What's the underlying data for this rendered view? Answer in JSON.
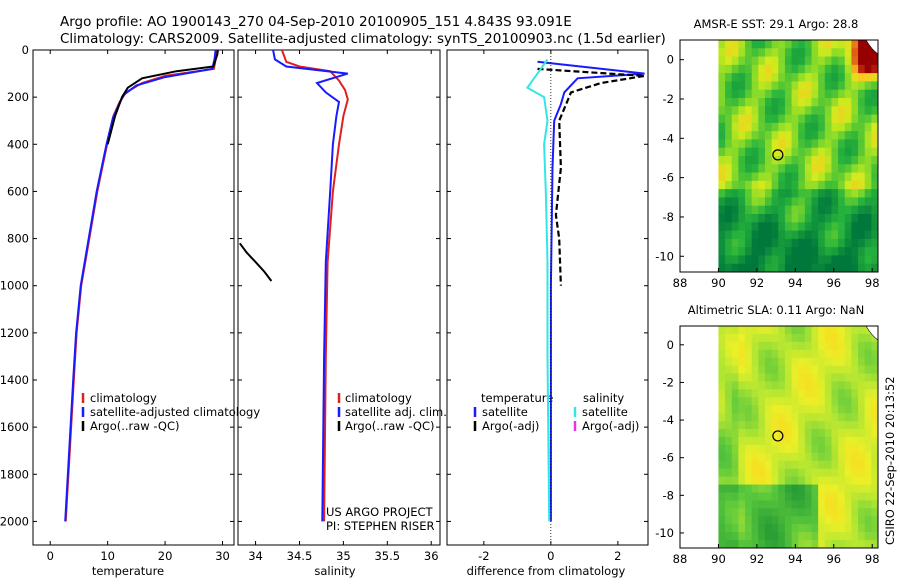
{
  "header": {
    "line1": "Argo profile: AO 1900143_270 04-Sep-2010 20100905_151 4.843S 93.091E",
    "line2": "Climatology: CARS2009. Satellite-adjusted climatology: synTS_20100903.nc (1.5d earlier)"
  },
  "side_label": "CSIRO 22-Sep-2010 20:13:52",
  "colors": {
    "climatology": "#e02020",
    "satellite": "#1a1aff",
    "argo": "#000000",
    "salinity_sat": "#33e6e6",
    "salinity_argo": "#e633e6"
  },
  "chart_data": [
    {
      "type": "line",
      "id": "temperature",
      "xlabel": "temperature",
      "ylabel": "",
      "xlim": [
        -3,
        32
      ],
      "ylim": [
        2100,
        0
      ],
      "xticks": [
        0,
        10,
        20,
        30
      ],
      "yticks": [
        0,
        200,
        400,
        600,
        800,
        1000,
        1200,
        1400,
        1600,
        1800,
        2000
      ],
      "series": [
        {
          "name": "climatology",
          "color": "#e02020",
          "x": [
            28.9,
            28.8,
            28.5,
            20,
            16,
            13.2,
            12.1,
            11,
            9.9,
            8.2,
            6.8,
            5.4,
            4.6,
            4.1,
            3.4,
            2.7
          ],
          "y": [
            0,
            40,
            80,
            110,
            140,
            180,
            220,
            280,
            400,
            600,
            800,
            1000,
            1200,
            1400,
            1700,
            2000
          ]
        },
        {
          "name": "satellite-adjusted climatology",
          "color": "#1a1aff",
          "x": [
            28.8,
            28.6,
            28.2,
            20,
            15,
            12.8,
            12,
            10.9,
            9.8,
            8.1,
            6.7,
            5.3,
            4.5,
            4,
            3.3,
            2.6
          ],
          "y": [
            0,
            40,
            80,
            115,
            150,
            190,
            230,
            290,
            400,
            600,
            800,
            1000,
            1200,
            1400,
            1700,
            2000
          ]
        },
        {
          "name": "Argo(..raw -QC)",
          "color": "#000000",
          "x": [
            29.2,
            29.1,
            28.4,
            22,
            16,
            13.5,
            12.5,
            11.3,
            10
          ],
          "y": [
            0,
            20,
            70,
            90,
            120,
            160,
            200,
            280,
            400
          ]
        }
      ],
      "legend": [
        "climatology",
        "satellite-adjusted climatology",
        "Argo(..raw -QC)"
      ],
      "legend_position": "lower-right"
    },
    {
      "type": "line",
      "id": "salinity",
      "xlabel": "salinity",
      "ylabel": "",
      "xlim": [
        33.8,
        36.1
      ],
      "ylim": [
        2100,
        0
      ],
      "xticks": [
        34,
        34.5,
        35,
        35.5,
        36
      ],
      "yticks": [
        0,
        200,
        400,
        600,
        800,
        1000,
        1200,
        1400,
        1600,
        1800,
        2000
      ],
      "series": [
        {
          "name": "climatology",
          "color": "#e02020",
          "x": [
            34.3,
            34.35,
            34.5,
            34.85,
            34.95,
            35.02,
            35.05,
            35.0,
            34.95,
            34.88,
            34.82,
            34.8,
            34.78
          ],
          "y": [
            0,
            50,
            70,
            90,
            130,
            170,
            210,
            280,
            400,
            600,
            900,
            1300,
            2000
          ]
        },
        {
          "name": "satellite adj. clim.",
          "color": "#1a1aff",
          "x": [
            34.2,
            34.22,
            34.35,
            35.05,
            34.7,
            34.8,
            34.95,
            34.92,
            34.88,
            34.85,
            34.8,
            34.78,
            34.76
          ],
          "y": [
            0,
            40,
            70,
            100,
            140,
            180,
            220,
            280,
            400,
            600,
            900,
            1300,
            2000
          ]
        },
        {
          "name": "Argo(..raw -QC)",
          "color": "#000000",
          "x": [
            33.82,
            33.9,
            34.0,
            34.1,
            34.18
          ],
          "y": [
            820,
            860,
            900,
            940,
            980
          ]
        }
      ],
      "legend": [
        "climatology",
        "satellite adj. clim.",
        "Argo(..raw -QC)"
      ],
      "legend_position": "lower-right",
      "annotations": [
        "US ARGO PROJECT",
        "PI: STEPHEN RISER"
      ]
    },
    {
      "type": "line",
      "id": "difference",
      "xlabel": "difference from climatology",
      "ylabel": "",
      "xlim": [
        -3.1,
        2.9
      ],
      "ylim": [
        2100,
        0
      ],
      "xticks": [
        -2,
        0,
        2
      ],
      "yticks": [
        0,
        200,
        400,
        600,
        800,
        1000,
        1200,
        1400,
        1600,
        1800,
        2000
      ],
      "series": [
        {
          "name": "temperature satellite",
          "color": "#1a1aff",
          "x": [
            -0.4,
            2.8,
            0.8,
            0.4,
            0.3,
            0.1,
            0.05,
            0.0,
            0.0
          ],
          "y": [
            50,
            100,
            120,
            180,
            230,
            300,
            500,
            1000,
            2000
          ]
        },
        {
          "name": "temperature Argo(-adj)",
          "color": "#000000",
          "x": [
            -0.4,
            2.8,
            1.5,
            0.6,
            0.25,
            0.3,
            0.15,
            0.25,
            0.3
          ],
          "y": [
            80,
            110,
            140,
            180,
            300,
            500,
            700,
            800,
            1000
          ]
        },
        {
          "name": "salinity satellite",
          "color": "#33e6e6",
          "x": [
            -0.1,
            -0.7,
            -0.2,
            -0.1,
            -0.2,
            -0.15,
            -0.1,
            -0.1,
            -0.05
          ],
          "y": [
            40,
            160,
            200,
            300,
            400,
            600,
            900,
            1300,
            2000
          ]
        },
        {
          "name": "salinity Argo(-adj)",
          "color": "#e633e6",
          "x": [],
          "y": []
        }
      ],
      "legend_temperature_title": "temperature",
      "legend_salinity_title": "salinity",
      "legend_temperature": [
        "satellite",
        "Argo(-adj)"
      ],
      "legend_salinity": [
        "satellite",
        "Argo(-adj)"
      ],
      "legend_position": "lower"
    },
    {
      "type": "heatmap",
      "id": "sst_map",
      "title": "AMSR-E SST: 29.1  Argo: 28.8",
      "xlim": [
        88,
        98.3
      ],
      "ylim": [
        -10.8,
        1
      ],
      "xticks": [
        88,
        90,
        92,
        94,
        96,
        98
      ],
      "yticks": [
        0,
        -2,
        -4,
        -6,
        -8,
        -10
      ],
      "marker": {
        "lon": 93.091,
        "lat": -4.843
      }
    },
    {
      "type": "heatmap",
      "id": "sla_map",
      "title": "Altimetric SLA: 0.11  Argo: NaN",
      "xlim": [
        88,
        98.3
      ],
      "ylim": [
        -10.8,
        1
      ],
      "xticks": [
        88,
        90,
        92,
        94,
        96,
        98
      ],
      "yticks": [
        0,
        -2,
        -4,
        -6,
        -8,
        -10
      ],
      "marker": {
        "lon": 93.091,
        "lat": -4.843
      }
    }
  ]
}
